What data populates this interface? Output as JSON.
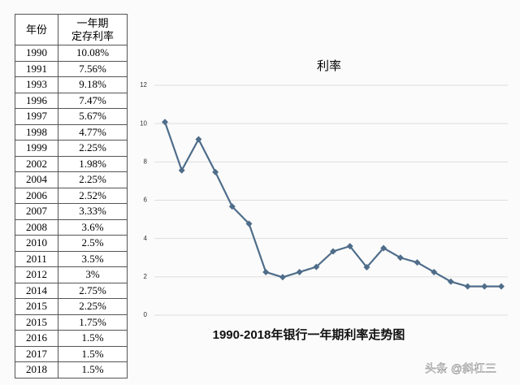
{
  "table": {
    "header": [
      "年份",
      [
        "一年期",
        "定存利率"
      ]
    ],
    "rows": [
      [
        "1990",
        "10.08%"
      ],
      [
        "1991",
        "7.56%"
      ],
      [
        "1993",
        "9.18%"
      ],
      [
        "1996",
        "7.47%"
      ],
      [
        "1997",
        "5.67%"
      ],
      [
        "1998",
        "4.77%"
      ],
      [
        "1999",
        "2.25%"
      ],
      [
        "2002",
        "1.98%"
      ],
      [
        "2004",
        "2.25%"
      ],
      [
        "2006",
        "2.52%"
      ],
      [
        "2007",
        "3.33%"
      ],
      [
        "2008",
        "3.6%"
      ],
      [
        "2010",
        "2.5%"
      ],
      [
        "2011",
        "3.5%"
      ],
      [
        "2012",
        "3%"
      ],
      [
        "2014",
        "2.75%"
      ],
      [
        "2015",
        "2.25%"
      ],
      [
        "2015",
        "1.75%"
      ],
      [
        "2016",
        "1.5%"
      ],
      [
        "2017",
        "1.5%"
      ],
      [
        "2018",
        "1.5%"
      ]
    ]
  },
  "chart_data": {
    "type": "line",
    "title": "利率",
    "caption": "1990-2018年银行一年期利率走势图",
    "categories": [
      null,
      null,
      null,
      null,
      null,
      null,
      null,
      null,
      null,
      null,
      null,
      null,
      null,
      null,
      null,
      null,
      null,
      null,
      null,
      null,
      null
    ],
    "values": [
      10.08,
      7.56,
      9.18,
      7.47,
      5.67,
      4.77,
      2.25,
      1.98,
      2.25,
      2.52,
      3.33,
      3.6,
      2.5,
      3.5,
      3,
      2.75,
      2.25,
      1.75,
      1.5,
      1.5,
      1.5
    ],
    "color": "#4f6d8a",
    "ylim": [
      0,
      12
    ],
    "yticks": [
      0,
      2,
      4,
      6,
      8,
      10,
      12
    ],
    "grid": true
  },
  "watermark": "头条 @斜杠三"
}
